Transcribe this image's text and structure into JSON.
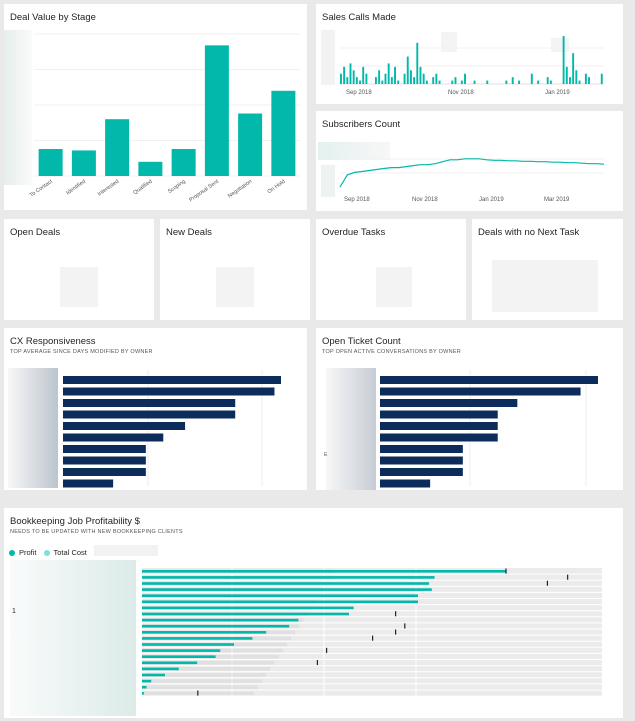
{
  "tiles": {
    "deal_value": {
      "title": "Deal Value by Stage"
    },
    "sales_calls": {
      "title": "Sales Calls Made"
    },
    "subscribers": {
      "title": "Subscribers Count"
    },
    "open_deals": {
      "title": "Open Deals"
    },
    "new_deals": {
      "title": "New Deals"
    },
    "overdue_tasks": {
      "title": "Overdue Tasks"
    },
    "no_next_task": {
      "title": "Deals with no Next Task"
    },
    "cx": {
      "title": "CX Responsiveness",
      "subtitle": "TOP AVERAGE SINCE DAYS MODIFIED BY OWNER"
    },
    "tickets": {
      "title": "Open Ticket Count",
      "subtitle": "TOP OPEN ACTIVE CONVERSATIONS BY OWNER",
      "stray_label": "E"
    },
    "bookkeeping": {
      "title": "Bookkeeping Job Profitability $",
      "subtitle": "NEEDS TO BE UPDATED WITH NEW BOOKKEEPING CLIENTS",
      "legend_profit": "Profit",
      "legend_cost": "Total Cost",
      "axis_label": "1"
    }
  },
  "colors": {
    "teal": "#01b8aa",
    "navy": "#0c2d5b",
    "light_gray": "#ebebeb",
    "dark_gray": "#d2d2d2",
    "background": "#e9e9e9"
  },
  "chart_data": [
    {
      "id": "deal_value",
      "type": "bar",
      "categories": [
        "To Contact",
        "Identified",
        "Interested",
        "Qualified",
        "Scoping",
        "Proposal Sent",
        "Negotiation",
        "On Hold"
      ],
      "values": [
        19,
        18,
        40,
        10,
        19,
        92,
        44,
        60
      ],
      "ylim": [
        0,
        100
      ],
      "grid": true
    },
    {
      "id": "sales_calls",
      "type": "bar",
      "x_ticks": [
        "Sep 2018",
        "Nov 2018",
        "Jan 2019"
      ],
      "values": [
        3,
        5,
        2,
        6,
        4,
        2,
        1,
        5,
        3,
        0,
        0,
        2,
        4,
        1,
        3,
        6,
        2,
        5,
        1,
        0,
        3,
        8,
        4,
        2,
        12,
        5,
        3,
        1,
        0,
        2,
        3,
        1,
        0,
        0,
        0,
        1,
        2,
        0,
        1,
        3,
        0,
        0,
        1,
        0,
        0,
        0,
        1,
        0,
        0,
        0,
        0,
        0,
        1,
        0,
        2,
        0,
        1,
        0,
        0,
        0,
        3,
        0,
        1,
        0,
        0,
        2,
        1,
        0,
        0,
        0,
        14,
        5,
        2,
        9,
        4,
        1,
        0,
        3,
        2,
        0,
        0,
        0,
        3
      ],
      "grid": true
    },
    {
      "id": "subscribers",
      "type": "line",
      "x_ticks": [
        "Sep 2018",
        "Nov 2018",
        "Jan 2019",
        "Mar 2019"
      ],
      "values": [
        0,
        25,
        30,
        32,
        34,
        36,
        38,
        40,
        40,
        42,
        44,
        46,
        46,
        48,
        52,
        56,
        56,
        58,
        58,
        58,
        56,
        55,
        55,
        54,
        54,
        53,
        53,
        52,
        52,
        51,
        51,
        50,
        50,
        49,
        48,
        48,
        47
      ],
      "grid": true
    },
    {
      "id": "cx",
      "type": "bar",
      "orientation": "horizontal",
      "values": [
        100,
        97,
        79,
        79,
        56,
        46,
        38,
        38,
        38,
        23
      ],
      "grid": true
    },
    {
      "id": "tickets",
      "type": "bar",
      "orientation": "horizontal",
      "values": [
        100,
        92,
        63,
        54,
        54,
        54,
        38,
        38,
        38,
        23
      ],
      "grid": true
    },
    {
      "id": "bookkeeping",
      "type": "bar",
      "orientation": "horizontal",
      "series": [
        {
          "name": "Profit",
          "values": [
            395,
            318,
            312,
            315,
            300,
            300,
            230,
            225,
            170,
            160,
            135,
            120,
            100,
            85,
            80,
            60,
            40,
            25,
            10,
            5,
            2
          ]
        },
        {
          "name": "Total Cost",
          "values": [
            465,
            460,
            450,
            440,
            430,
            420,
            410,
            400,
            390,
            380,
            370,
            360,
            350,
            340,
            330,
            320,
            310,
            300,
            290,
            280,
            270
          ]
        }
      ],
      "targets": [
        395,
        462,
        440,
        0,
        0,
        0,
        0,
        275,
        0,
        285,
        275,
        250,
        0,
        200,
        0,
        190,
        0,
        0,
        0,
        0,
        60
      ]
    }
  ]
}
